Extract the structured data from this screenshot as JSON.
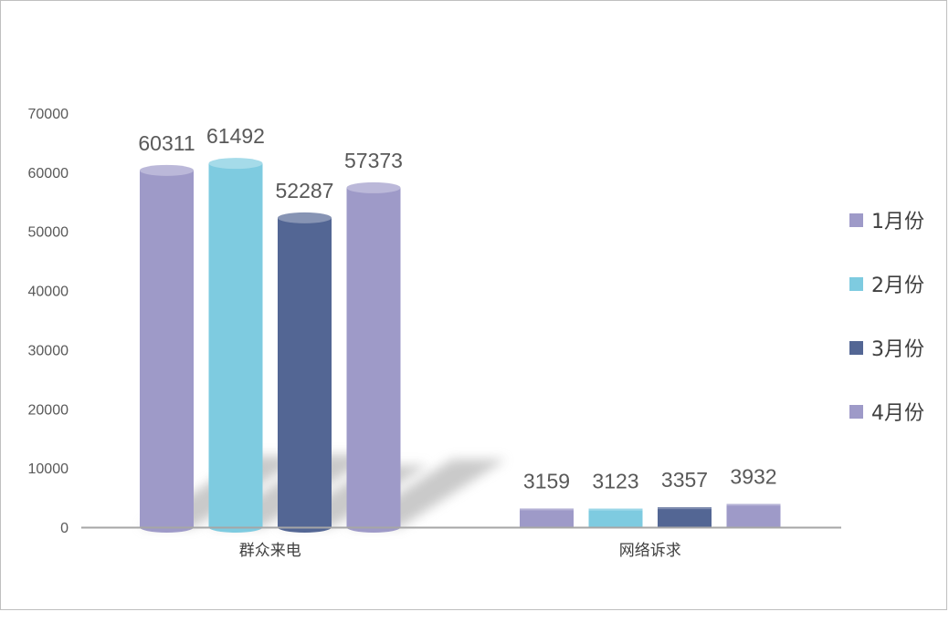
{
  "chart_data": {
    "type": "bar",
    "categories": [
      "群众来电",
      "网络诉求"
    ],
    "series": [
      {
        "name": "1月份",
        "values": [
          60311,
          3159
        ],
        "color": "#9e9ac8"
      },
      {
        "name": "2月份",
        "values": [
          61492,
          3123
        ],
        "color": "#7ecbe0"
      },
      {
        "name": "3月份",
        "values": [
          52287,
          3357
        ],
        "color": "#536694"
      },
      {
        "name": "4月份",
        "values": [
          57373,
          3932
        ],
        "color": "#9e9ac8"
      }
    ],
    "y_ticks": [
      "0",
      "10000",
      "20000",
      "30000",
      "40000",
      "50000",
      "60000",
      "70000"
    ],
    "ylim": [
      0,
      70000
    ],
    "title": "",
    "xlabel": "",
    "ylabel": "",
    "legend_position": "right",
    "grid": false,
    "style": "3d-cylinder"
  }
}
